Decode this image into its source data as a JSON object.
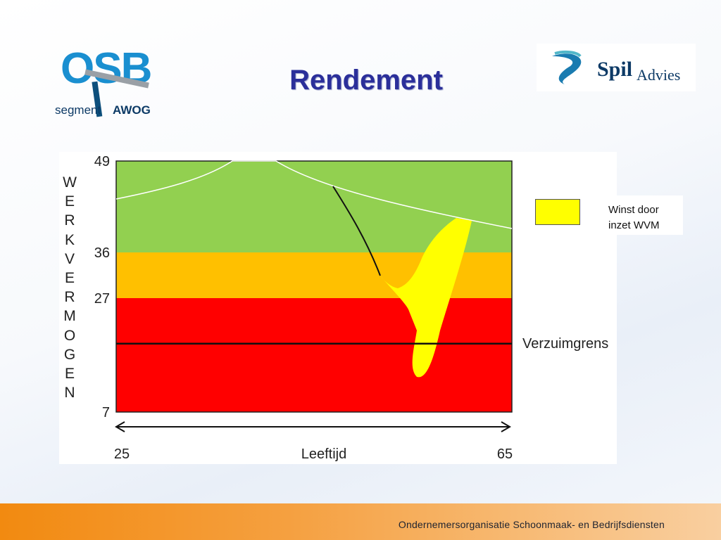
{
  "slide": {
    "title": "Rendement",
    "footer": "Ondernemersorganisatie Schoonmaak- en Bedrijfsdiensten"
  },
  "logos": {
    "osb": {
      "letters": "OSB",
      "segment": "segment",
      "group": "AWOG"
    },
    "spil": {
      "name": "Spil",
      "suffix": "Advies"
    }
  },
  "chart_data": {
    "type": "area",
    "ylabel_letters": [
      "W",
      "E",
      "R",
      "K",
      "V",
      "E",
      "R",
      "M",
      "O",
      "G",
      "E",
      "N"
    ],
    "xlabel": "Leeftijd",
    "xlim": [
      25,
      65
    ],
    "ylim": [
      7,
      49
    ],
    "x_ticks": [
      "25",
      "65"
    ],
    "y_ticks": [
      "49",
      "36",
      "27",
      "7"
    ],
    "bands": [
      {
        "from": 36,
        "to": 49,
        "color": "#92d050"
      },
      {
        "from": 27,
        "to": 36,
        "color": "#ffc000"
      },
      {
        "from": 7,
        "to": 27,
        "color": "#ff0000"
      }
    ],
    "threshold": {
      "label": "Verzuimgrens",
      "value": 19
    },
    "legend": {
      "label_line1": "Winst door",
      "label_line2": "inzet WVM",
      "color": "#ffff00"
    }
  }
}
